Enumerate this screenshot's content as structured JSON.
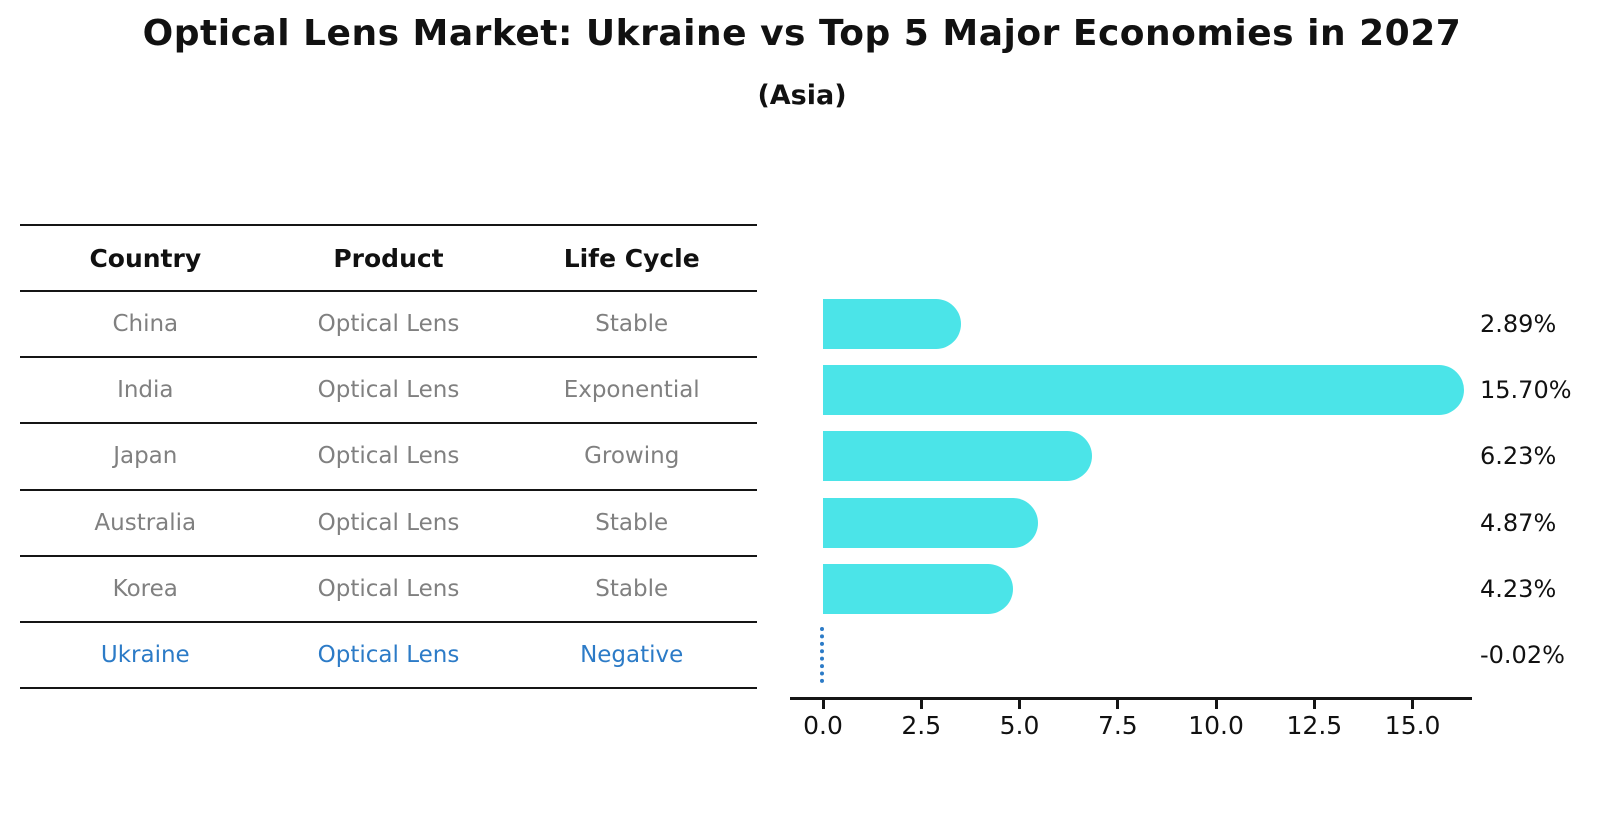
{
  "header": {
    "title": "Optical Lens Market: Ukraine vs Top 5 Major Economies in 2027",
    "subtitle": "(Asia)"
  },
  "table": {
    "columns": [
      "Country",
      "Product",
      "Life Cycle"
    ],
    "rows": [
      {
        "country": "China",
        "product": "Optical Lens",
        "life_cycle": "Stable",
        "highlight": false
      },
      {
        "country": "India",
        "product": "Optical Lens",
        "life_cycle": "Exponential",
        "highlight": false
      },
      {
        "country": "Japan",
        "product": "Optical Lens",
        "life_cycle": "Growing",
        "highlight": false
      },
      {
        "country": "Australia",
        "product": "Optical Lens",
        "life_cycle": "Stable",
        "highlight": false
      },
      {
        "country": "Korea",
        "product": "Optical Lens",
        "life_cycle": "Stable",
        "highlight": false
      },
      {
        "country": "Ukraine",
        "product": "Optical Lens",
        "life_cycle": "Negative",
        "highlight": true
      }
    ]
  },
  "chart_data": {
    "type": "bar",
    "orientation": "horizontal",
    "title": "Optical Lens Market: Ukraine vs Top 5 Major Economies in 2027",
    "subtitle": "(Asia)",
    "categories": [
      "China",
      "India",
      "Japan",
      "Australia",
      "Korea",
      "Ukraine"
    ],
    "values": [
      2.89,
      15.7,
      6.23,
      4.87,
      4.23,
      -0.02
    ],
    "value_labels": [
      "2.89%",
      "15.70%",
      "6.23%",
      "4.87%",
      "4.23%",
      "-0.02%"
    ],
    "xlabel": "",
    "ylabel": "",
    "xlim": [
      -0.84,
      16.51
    ],
    "xticks": [
      0,
      2.5,
      5,
      7.5,
      10,
      12.5,
      15
    ],
    "xtick_labels": [
      "0.0",
      "2.5",
      "5.0",
      "7.5",
      "10.0",
      "12.5",
      "15.0"
    ],
    "grid": false,
    "legend": false,
    "bar_color": "#4be4e8",
    "highlight_color": "#2c7bc7",
    "negative_marker": "dotted-vertical-line"
  },
  "colors": {
    "bar": "#4be4e8",
    "highlight_blue": "#2c7bc7",
    "table_text": "#808080",
    "axis_line": "#151515"
  }
}
